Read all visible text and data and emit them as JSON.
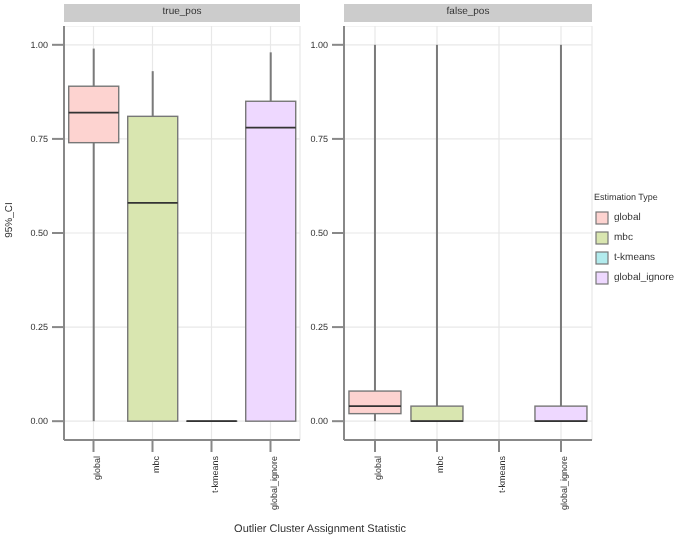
{
  "chart_data": [
    {
      "type": "box",
      "title": "true_pos",
      "ylabel": "95%_CI",
      "xlabel": "Outlier Cluster Assignment Statistic",
      "categories": [
        "global",
        "mbc",
        "t-kmeans",
        "global_ignore"
      ],
      "series": [
        {
          "color": "#fdd3d0",
          "boxes": [
            {
              "low": 0,
              "q1": 0.74,
              "median": 0.82,
              "q3": 0.89,
              "high": 0.99
            },
            null,
            null,
            null
          ]
        },
        {
          "color": "#d9e6b0",
          "boxes": [
            null,
            {
              "low": 0,
              "q1": 0,
              "median": 0.58,
              "q3": 0.81,
              "high": 0.93
            },
            null,
            null
          ]
        },
        {
          "color": "#b2ebed",
          "boxes": [
            null,
            null,
            {
              "low": 0,
              "q1": 0,
              "median": 0,
              "q3": 0,
              "high": 0
            },
            null
          ]
        },
        {
          "color": "#eed8ff",
          "boxes": [
            null,
            null,
            null,
            {
              "low": 0,
              "q1": 0,
              "median": 0.78,
              "q3": 0.85,
              "high": 0.98
            }
          ]
        }
      ],
      "ylim": [
        -0.05,
        1.05
      ],
      "yticks": [
        {
          "value": 0,
          "label": "0.00"
        },
        {
          "value": 0.25,
          "label": "0.25"
        },
        {
          "value": 0.5,
          "label": "0.50"
        },
        {
          "value": 0.75,
          "label": "0.75"
        },
        {
          "value": 1,
          "label": "1.00"
        }
      ],
      "grid": true
    },
    {
      "type": "box",
      "title": "false_pos",
      "legend_title": "Estimation Type",
      "legend": "right",
      "categories": [
        "global",
        "mbc",
        "t-kmeans",
        "global_ignore"
      ],
      "series": [
        {
          "name": "global",
          "color": "#fdd3d0",
          "boxes": [
            {
              "low": 0,
              "q1": 0.02,
              "median": 0.04,
              "q3": 0.08,
              "high": 1
            },
            null,
            null,
            null
          ]
        },
        {
          "name": "mbc",
          "color": "#d9e6b0",
          "boxes": [
            null,
            {
              "low": 0,
              "q1": 0,
              "median": 0,
              "q3": 0.04,
              "high": 1
            },
            null,
            null
          ]
        },
        {
          "name": "t-kmeans",
          "color": "#b2ebed",
          "boxes": [
            null,
            null,
            null,
            null
          ]
        },
        {
          "name": "global_ignore",
          "color": "#eed8ff",
          "boxes": [
            null,
            null,
            null,
            {
              "low": 0,
              "q1": 0,
              "median": 0,
              "q3": 0.04,
              "high": 1
            }
          ]
        }
      ],
      "ylim": [
        -0.05,
        1.05
      ],
      "yticks": [
        {
          "value": 0,
          "label": "0.00"
        },
        {
          "value": 0.25,
          "label": "0.25"
        },
        {
          "value": 0.5,
          "label": "0.50"
        },
        {
          "value": 0.75,
          "label": "0.75"
        },
        {
          "value": 1,
          "label": "1.00"
        }
      ],
      "grid": true
    }
  ]
}
